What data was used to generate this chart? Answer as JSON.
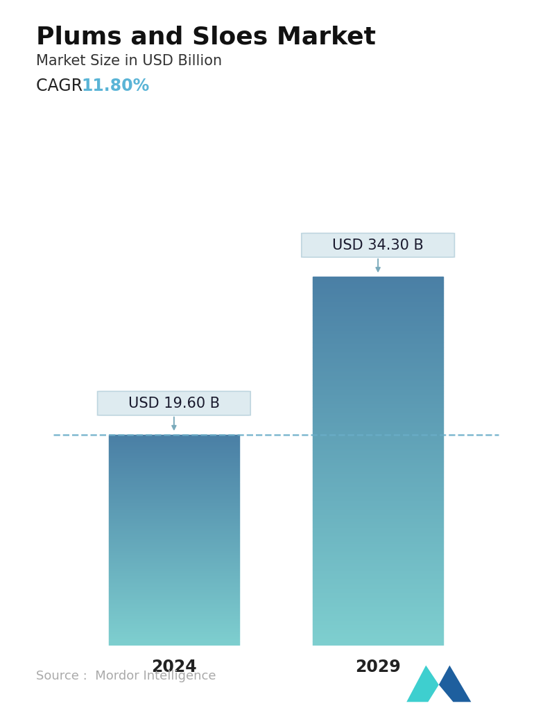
{
  "title": "Plums and Sloes Market",
  "subtitle": "Market Size in USD Billion",
  "cagr_label": "CAGR  ",
  "cagr_value": "11.80%",
  "cagr_color": "#5ab4d6",
  "categories": [
    "2024",
    "2029"
  ],
  "values": [
    19.6,
    34.3
  ],
  "labels": [
    "USD 19.60 B",
    "USD 34.30 B"
  ],
  "bar_color_top": "#4a7fa5",
  "bar_color_bottom": "#7ecfcf",
  "dashed_line_color": "#6aadc8",
  "dashed_line_y": 19.6,
  "ylim": [
    0,
    40
  ],
  "source_text": "Source :  Mordor Intelligence",
  "source_color": "#aaaaaa",
  "bg_color": "#ffffff",
  "title_fontsize": 26,
  "subtitle_fontsize": 15,
  "cagr_fontsize": 17,
  "axis_label_fontsize": 17,
  "annotation_fontsize": 15,
  "source_fontsize": 13
}
